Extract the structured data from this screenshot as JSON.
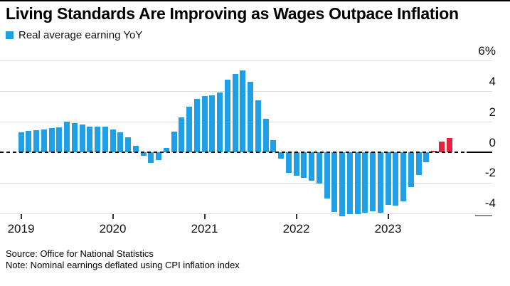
{
  "header": {
    "title": "Living Standards Are Improving as Wages Outpace Inflation"
  },
  "legend": {
    "label": "Real average earning YoY",
    "swatch_color": "#1f9fe8"
  },
  "chart_data": {
    "type": "bar",
    "title": "Living Standards Are Improving as Wages Outpace Inflation",
    "legend_entries": [
      "Real average earning YoY"
    ],
    "unit": "%",
    "categories": [
      "Jan 2019",
      "Feb 2019",
      "Mar 2019",
      "Apr 2019",
      "May 2019",
      "Jun 2019",
      "Jul 2019",
      "Aug 2019",
      "Sep 2019",
      "Oct 2019",
      "Nov 2019",
      "Dec 2019",
      "Jan 2020",
      "Feb 2020",
      "Mar 2020",
      "Apr 2020",
      "May 2020",
      "Jun 2020",
      "Jul 2020",
      "Aug 2020",
      "Sep 2020",
      "Oct 2020",
      "Nov 2020",
      "Dec 2020",
      "Jan 2021",
      "Feb 2021",
      "Mar 2021",
      "Apr 2021",
      "May 2021",
      "Jun 2021",
      "Jul 2021",
      "Aug 2021",
      "Sep 2021",
      "Oct 2021",
      "Nov 2021",
      "Dec 2021",
      "Jan 2022",
      "Feb 2022",
      "Mar 2022",
      "Apr 2022",
      "May 2022",
      "Jun 2022",
      "Jul 2022",
      "Aug 2022",
      "Sep 2022",
      "Oct 2022",
      "Nov 2022",
      "Dec 2022",
      "Jan 2023",
      "Feb 2023",
      "Mar 2023",
      "Apr 2023",
      "May 2023",
      "Jun 2023",
      "Jul 2023",
      "Aug 2023",
      "Sep 2023"
    ],
    "values": [
      1.3,
      1.4,
      1.45,
      1.5,
      1.6,
      1.65,
      2.0,
      1.9,
      1.8,
      1.7,
      1.7,
      1.7,
      1.5,
      1.3,
      1.0,
      0.4,
      -0.25,
      -0.7,
      -0.5,
      0.3,
      1.35,
      2.3,
      3.0,
      3.5,
      3.7,
      3.75,
      3.9,
      4.75,
      5.15,
      5.35,
      4.6,
      3.4,
      2.2,
      0.8,
      -0.4,
      -1.35,
      -1.55,
      -1.7,
      -1.85,
      -2.05,
      -3.05,
      -3.9,
      -4.2,
      -4.05,
      -4.05,
      -3.95,
      -3.85,
      -3.95,
      -3.45,
      -3.5,
      -3.2,
      -2.3,
      -1.5,
      -0.65,
      0.1,
      0.7,
      0.95
    ],
    "colors": {
      "default": "#1f9fe8",
      "recent_highlight": "#e3233d"
    },
    "highlight_start_index": 54,
    "y_axis": {
      "ticks": [
        {
          "label": "6%",
          "value": 6
        },
        {
          "label": "4",
          "value": 4
        },
        {
          "label": "2",
          "value": 2
        },
        {
          "label": "0",
          "value": 0
        },
        {
          "label": "-2",
          "value": -2
        },
        {
          "label": "-4",
          "value": -4
        }
      ],
      "range": [
        -4.6,
        6
      ],
      "grid": true,
      "zero_line": "dashed"
    },
    "x_axis": {
      "ticks": [
        {
          "label": "2019",
          "month_index": 0
        },
        {
          "label": "2020",
          "month_index": 12
        },
        {
          "label": "2021",
          "month_index": 24
        },
        {
          "label": "2022",
          "month_index": 36
        },
        {
          "label": "2023",
          "month_index": 48
        }
      ]
    },
    "legend_position": "top-left"
  },
  "footer": {
    "source": "Source: Office for National Statistics",
    "note": "Note: Nominal earnings deflated using CPI inflation index"
  }
}
